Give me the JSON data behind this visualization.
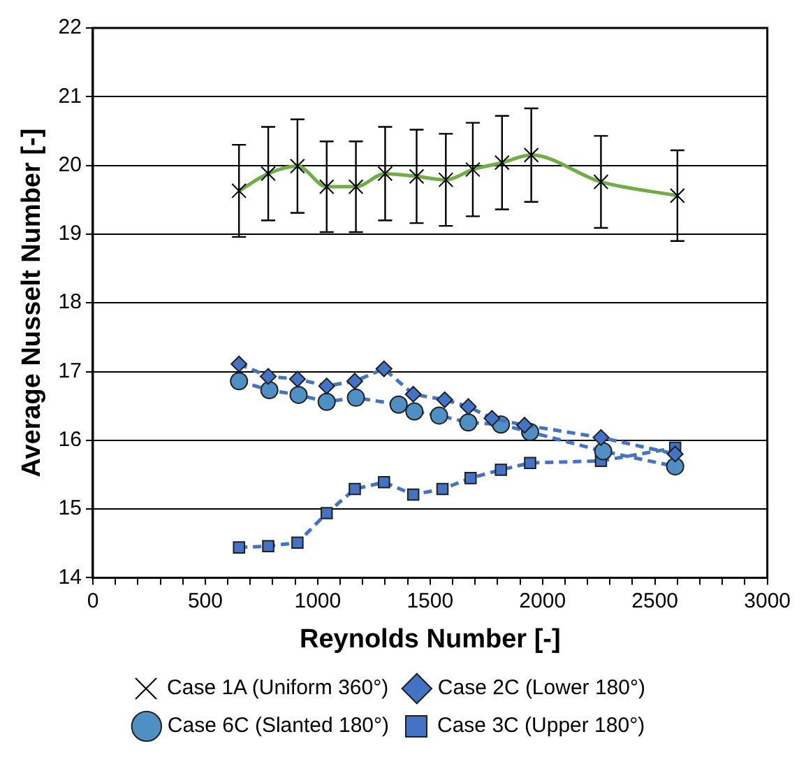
{
  "chart_data": {
    "type": "line",
    "xlabel": "Reynolds Number [-]",
    "ylabel": "Average Nusselt Number [-]",
    "xlim": [
      0,
      3000
    ],
    "xticks": [
      0,
      {
        "value": 100,
        "label": null
      },
      {
        "value": 200,
        "label": null
      },
      {
        "value": 300,
        "label": null
      },
      {
        "value": 400,
        "label": null
      },
      500,
      {
        "value": 600,
        "label": null
      },
      {
        "value": 700,
        "label": null
      },
      {
        "value": 800,
        "label": null
      },
      {
        "value": 900,
        "label": null
      },
      1000,
      {
        "value": 1100,
        "label": null
      },
      {
        "value": 1200,
        "label": null
      },
      {
        "value": 1300,
        "label": null
      },
      {
        "value": 1400,
        "label": null
      },
      1500,
      {
        "value": 1600,
        "label": null
      },
      {
        "value": 1700,
        "label": null
      },
      {
        "value": 1800,
        "label": null
      },
      {
        "value": 1900,
        "label": null
      },
      2000,
      {
        "value": 2100,
        "label": null
      },
      {
        "value": 2200,
        "label": null
      },
      {
        "value": 2300,
        "label": null
      },
      {
        "value": 2400,
        "label": null
      },
      2500,
      {
        "value": 2600,
        "label": null
      },
      {
        "value": 2700,
        "label": null
      },
      {
        "value": 2800,
        "label": null
      },
      {
        "value": 2900,
        "label": null
      },
      3000
    ],
    "ylim": [
      14,
      22
    ],
    "yticks": [
      14,
      15,
      16,
      17,
      18,
      19,
      20,
      21,
      22
    ],
    "grid": "y",
    "legend": "bottom",
    "series": [
      {
        "name": "Case 1A (Uniform 360°)",
        "color": "#70ad47",
        "marker": "cross",
        "line_style": "solid",
        "x": [
          650,
          780,
          910,
          1040,
          1170,
          1300,
          1440,
          1570,
          1690,
          1820,
          1950,
          2260,
          2600
        ],
        "values": [
          19.63,
          19.88,
          19.99,
          19.69,
          19.69,
          19.88,
          19.84,
          19.79,
          19.94,
          20.04,
          20.15,
          19.76,
          19.56
        ],
        "errors": [
          0.67,
          0.68,
          0.68,
          0.66,
          0.66,
          0.68,
          0.68,
          0.67,
          0.68,
          0.68,
          0.68,
          0.67,
          0.66
        ]
      },
      {
        "name": "Case 2C (Lower 180°)",
        "color": "#4472c4",
        "marker": "diamond",
        "line_style": "dashed",
        "x": [
          650,
          780,
          910,
          1040,
          1165,
          1295,
          1425,
          1565,
          1670,
          1775,
          1920,
          2260,
          2590
        ],
        "values": [
          17.11,
          16.93,
          16.89,
          16.79,
          16.86,
          17.04,
          16.67,
          16.59,
          16.49,
          16.32,
          16.22,
          16.04,
          15.8
        ]
      },
      {
        "name": "Case 6C (Slanted 180°)",
        "color": "#4f8fc4",
        "marker": "circle",
        "line_style": "dashed",
        "x": [
          650,
          785,
          915,
          1040,
          1170,
          1360,
          1430,
          1540,
          1670,
          1815,
          1945,
          2270,
          2590
        ],
        "values": [
          16.86,
          16.73,
          16.66,
          16.56,
          16.62,
          16.52,
          16.42,
          16.36,
          16.26,
          16.23,
          16.12,
          15.84,
          15.62
        ]
      },
      {
        "name": "Case 3C (Upper 180°)",
        "color": "#4472c4",
        "marker": "square",
        "line_style": "dashed",
        "x": [
          650,
          780,
          910,
          1040,
          1165,
          1295,
          1425,
          1555,
          1680,
          1815,
          1945,
          2260,
          2590
        ],
        "values": [
          14.44,
          14.46,
          14.51,
          14.94,
          15.29,
          15.39,
          15.21,
          15.29,
          15.45,
          15.57,
          15.67,
          15.7,
          15.89
        ]
      }
    ]
  }
}
